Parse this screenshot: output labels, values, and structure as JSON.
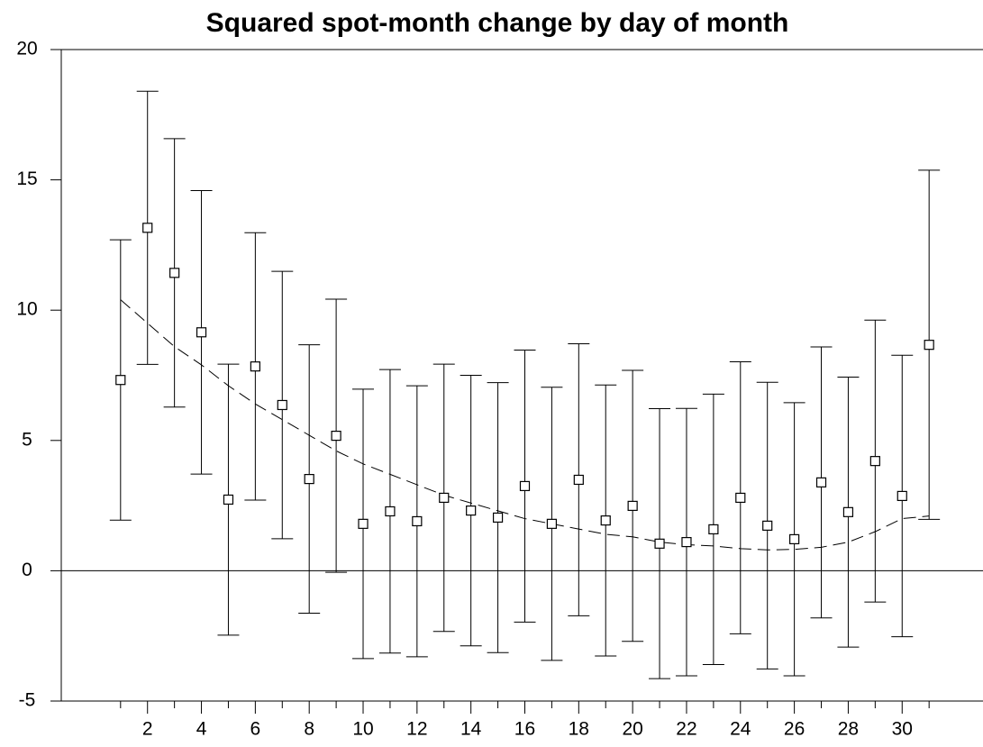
{
  "chart_data": {
    "type": "scatter",
    "title": "Squared spot-month change by day of month",
    "x": [
      1,
      2,
      3,
      4,
      5,
      6,
      7,
      8,
      9,
      10,
      11,
      12,
      13,
      14,
      15,
      16,
      17,
      18,
      19,
      20,
      21,
      22,
      23,
      24,
      25,
      26,
      27,
      28,
      29,
      30,
      31
    ],
    "values": [
      7.32,
      13.16,
      11.43,
      9.15,
      2.73,
      7.84,
      6.36,
      3.52,
      5.18,
      1.8,
      2.28,
      1.9,
      2.8,
      2.31,
      2.04,
      3.25,
      1.8,
      3.49,
      1.93,
      2.49,
      1.04,
      1.1,
      1.59,
      2.8,
      1.73,
      1.21,
      3.39,
      2.25,
      4.21,
      2.87,
      8.67
    ],
    "errors": [
      5.38,
      5.24,
      5.15,
      5.44,
      5.2,
      5.13,
      5.13,
      5.15,
      5.24,
      5.17,
      5.44,
      5.2,
      5.13,
      5.19,
      5.18,
      5.22,
      5.24,
      5.22,
      5.2,
      5.2,
      5.18,
      5.13,
      5.19,
      5.22,
      5.5,
      5.24,
      5.2,
      5.18,
      5.41,
      5.4,
      6.7
    ],
    "trend": [
      10.4,
      9.5,
      8.6,
      7.9,
      7.1,
      6.4,
      5.8,
      5.2,
      4.6,
      4.1,
      3.7,
      3.3,
      2.9,
      2.6,
      2.3,
      2.0,
      1.8,
      1.6,
      1.4,
      1.3,
      1.1,
      1.0,
      0.95,
      0.85,
      0.8,
      0.82,
      0.9,
      1.1,
      1.5,
      2.0,
      2.1
    ],
    "color": "#000000",
    "xlim": [
      -1.2,
      33
    ],
    "ylim": [
      -5,
      20
    ],
    "xticks": [
      2,
      4,
      6,
      8,
      10,
      12,
      14,
      16,
      18,
      20,
      22,
      24,
      26,
      28,
      30
    ],
    "xminorticks": [
      1,
      3,
      5,
      7,
      9,
      11,
      13,
      15,
      17,
      19,
      21,
      23,
      25,
      27,
      29,
      31
    ],
    "yticks": [
      -5,
      0,
      5,
      10,
      15,
      20
    ],
    "zero_line": true,
    "grid": false
  }
}
